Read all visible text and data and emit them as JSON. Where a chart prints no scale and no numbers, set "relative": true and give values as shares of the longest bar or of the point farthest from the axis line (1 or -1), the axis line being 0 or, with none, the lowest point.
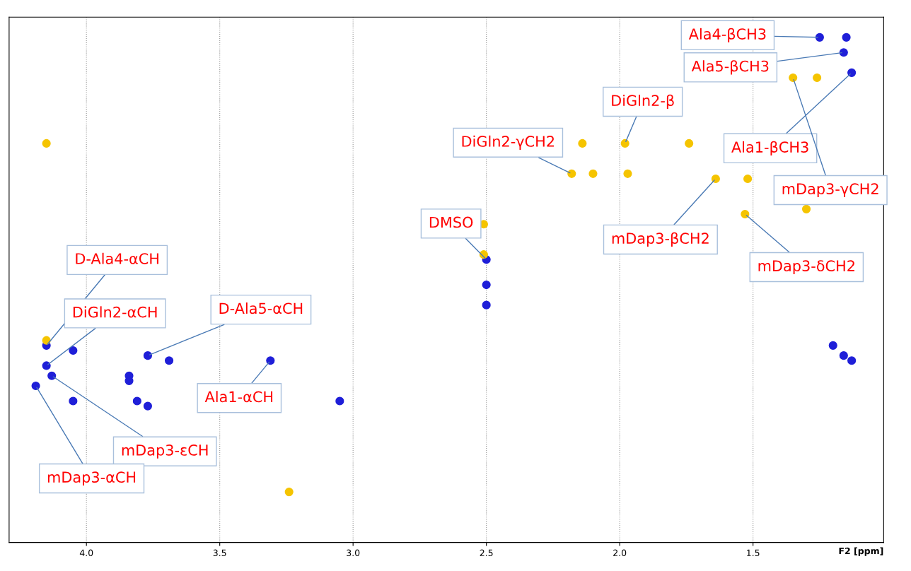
{
  "chart_data": {
    "type": "scatter",
    "xlabel": "F2 [ppm]",
    "xlim": [
      4.29,
      1.01
    ],
    "xticks": [
      {
        "value": 4.0,
        "label": "4.0"
      },
      3.5,
      {
        "value": 3.0,
        "label": "3.0"
      },
      2.5,
      {
        "value": 2.0,
        "label": "2.0"
      },
      1.5
    ],
    "relative": true,
    "tick_labels": "x",
    "grid": true,
    "marker": "circle",
    "series": [
      {
        "color": "#1f1fd8",
        "x": [
          1.25,
          1.15,
          1.16,
          1.13,
          2.5,
          2.5,
          2.5,
          4.15,
          4.05,
          4.15,
          4.13,
          4.19,
          3.77,
          3.69,
          3.31,
          3.05,
          4.05,
          3.84,
          3.84,
          3.81,
          3.77,
          1.2,
          1.16,
          1.13
        ],
        "values": [
          1.0,
          1.0,
          0.97,
          0.93,
          0.56,
          0.51,
          0.47,
          0.39,
          0.38,
          0.35,
          0.33,
          0.31,
          0.37,
          0.36,
          0.36,
          0.28,
          0.28,
          0.33,
          0.32,
          0.28,
          0.27,
          0.39,
          0.37,
          0.36
        ]
      },
      {
        "color": "#f5c400",
        "x": [
          1.35,
          1.26,
          1.98,
          1.74,
          2.14,
          4.15,
          2.18,
          2.1,
          1.97,
          1.64,
          1.52,
          1.53,
          1.3,
          2.51,
          2.51,
          3.24,
          4.15
        ],
        "values": [
          0.92,
          0.92,
          0.79,
          0.79,
          0.79,
          0.79,
          0.73,
          0.73,
          0.73,
          0.72,
          0.72,
          0.65,
          0.66,
          0.63,
          0.57,
          0.1,
          0.4
        ]
      }
    ],
    "annotations": [
      {
        "text": "Ala4-βCH3",
        "x": 1.25,
        "y": 1.0
      },
      {
        "text": "Ala5-βCH3",
        "x": 1.16,
        "y": 0.97
      },
      {
        "text": "DiGln2-β",
        "x": 1.98,
        "y": 0.79
      },
      {
        "text": "DiGln2-γCH2",
        "x": 2.18,
        "y": 0.73
      },
      {
        "text": "Ala1-βCH3",
        "x": 1.13,
        "y": 0.93
      },
      {
        "text": "mDap3-γCH2",
        "x": 1.35,
        "y": 0.92
      },
      {
        "text": "DMSO",
        "x": 2.5,
        "y": 0.56
      },
      {
        "text": "mDap3-βCH2",
        "x": 1.64,
        "y": 0.72
      },
      {
        "text": "mDap3-δCH2",
        "x": 1.53,
        "y": 0.65
      },
      {
        "text": "D-Ala4-αCH",
        "x": 4.15,
        "y": 0.39
      },
      {
        "text": "DiGln2-αCH",
        "x": 4.15,
        "y": 0.35
      },
      {
        "text": "D-Ala5-αCH",
        "x": 3.77,
        "y": 0.37
      },
      {
        "text": "Ala1-αCH",
        "x": 3.31,
        "y": 0.36
      },
      {
        "text": "mDap3-εCH",
        "x": 4.13,
        "y": 0.33
      },
      {
        "text": "mDap3-αCH",
        "x": 4.19,
        "y": 0.31
      }
    ]
  }
}
